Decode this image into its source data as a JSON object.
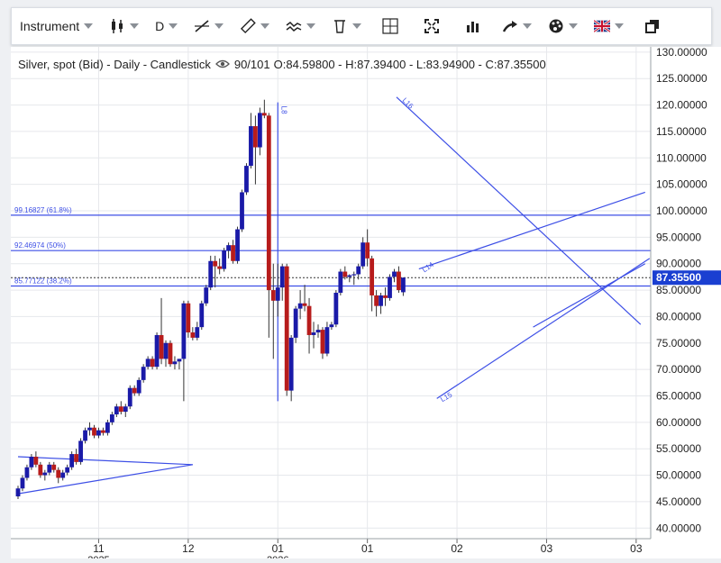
{
  "toolbar": {
    "instrument_label": "Instrument",
    "period_label": "D"
  },
  "info": {
    "title": "Silver, spot (Bid) - Daily - Candlestick",
    "count": "90/101",
    "ohlc": "O:84.59800 - H:87.39400 - L:83.94900 - C:87.35500"
  },
  "colors": {
    "up": "#1a1aa8",
    "down": "#b71c1c",
    "drawing": "#3d4fe6",
    "grid": "#e6e8ec",
    "price_tag": "#1a3fd1"
  },
  "chart_data": {
    "type": "candlestick",
    "ylim": [
      38,
      131
    ],
    "y_ticks": [
      "130.00000",
      "125.00000",
      "120.00000",
      "115.00000",
      "110.00000",
      "105.00000",
      "100.00000",
      "95.00000",
      "90.00000",
      "85.00000",
      "80.00000",
      "75.00000",
      "70.00000",
      "65.00000",
      "60.00000",
      "55.00000",
      "50.00000",
      "45.00000",
      "40.00000"
    ],
    "x_ticks": [
      {
        "label": "11",
        "sub": "2025",
        "i": 18
      },
      {
        "label": "12",
        "sub": "",
        "i": 38
      },
      {
        "label": "01",
        "sub": "2026",
        "i": 58
      },
      {
        "label": "01",
        "sub": "",
        "i": 78
      },
      {
        "label": "02",
        "sub": "",
        "i": 98
      },
      {
        "label": "03",
        "sub": "",
        "i": 118
      },
      {
        "label": "03",
        "sub": "",
        "i": 138
      }
    ],
    "last_price": "87.35500",
    "candles": [
      [
        46,
        48,
        45.5,
        47.5
      ],
      [
        47.5,
        50,
        47,
        49.5
      ],
      [
        49.5,
        52,
        49,
        51.5
      ],
      [
        51.5,
        54,
        51,
        53.5
      ],
      [
        53.5,
        54.5,
        51.5,
        52
      ],
      [
        52,
        52.5,
        49.5,
        50
      ],
      [
        50,
        51,
        49,
        50.5
      ],
      [
        50.5,
        52.5,
        50,
        52
      ],
      [
        52,
        52.5,
        50.5,
        51
      ],
      [
        51,
        51.5,
        48.5,
        49.5
      ],
      [
        49.5,
        51,
        49,
        50.5
      ],
      [
        50.5,
        52,
        50,
        51.5
      ],
      [
        51.5,
        54.5,
        51,
        54
      ],
      [
        54,
        55,
        52,
        52.5
      ],
      [
        52.5,
        57,
        52,
        56.5
      ],
      [
        56.5,
        59,
        56,
        58.5
      ],
      [
        58.5,
        60,
        57.5,
        59
      ],
      [
        59,
        59.5,
        57,
        57.5
      ],
      [
        57.5,
        59,
        57,
        58.5
      ],
      [
        58.5,
        59,
        57.5,
        58
      ],
      [
        58,
        60.5,
        57.5,
        60
      ],
      [
        60,
        62,
        59.5,
        61.5
      ],
      [
        61.5,
        63.5,
        61,
        63
      ],
      [
        63,
        64,
        61.5,
        62
      ],
      [
        62,
        63.5,
        61,
        63
      ],
      [
        63,
        67,
        62.5,
        66.5
      ],
      [
        66.5,
        67,
        65,
        65.5
      ],
      [
        65.5,
        68.5,
        65,
        68
      ],
      [
        68,
        71,
        67.5,
        70.5
      ],
      [
        70.5,
        72.5,
        70,
        72
      ],
      [
        72,
        72.5,
        70,
        70.5
      ],
      [
        70.5,
        77,
        70,
        76.5
      ],
      [
        76.5,
        83.5,
        71,
        72
      ],
      [
        72,
        75.5,
        70.5,
        75
      ],
      [
        75,
        75.5,
        70.5,
        71
      ],
      [
        71,
        72.5,
        70,
        71.5
      ],
      [
        71.5,
        72,
        70,
        72
      ],
      [
        72,
        83,
        64,
        82.5
      ],
      [
        82.5,
        83,
        76,
        77
      ],
      [
        77,
        78,
        75.5,
        76
      ],
      [
        76,
        79,
        75.5,
        78
      ],
      [
        78,
        83,
        77.5,
        82.5
      ],
      [
        82.5,
        86,
        82,
        85.5
      ],
      [
        85.5,
        91.5,
        85,
        90.5
      ],
      [
        90.5,
        91.5,
        85.5,
        89.5
      ],
      [
        89.5,
        91,
        88,
        89
      ],
      [
        89,
        93,
        88.5,
        92.5
      ],
      [
        92.5,
        94,
        91,
        93.5
      ],
      [
        93.5,
        94.5,
        90,
        90.5
      ],
      [
        90.5,
        97,
        90,
        96.5
      ],
      [
        96.5,
        104,
        96,
        103.5
      ],
      [
        103.5,
        109,
        103,
        108.5
      ],
      [
        108.5,
        118.5,
        108,
        116
      ],
      [
        116,
        118,
        105,
        112
      ],
      [
        112,
        119.5,
        110.5,
        118.5
      ],
      [
        118.5,
        121,
        117.5,
        118
      ],
      [
        118,
        118.5,
        76,
        85
      ],
      [
        85,
        90,
        72,
        83
      ],
      [
        83,
        90,
        80,
        85.5
      ],
      [
        85.5,
        90,
        83,
        89.5
      ],
      [
        89.5,
        90,
        65,
        66
      ],
      [
        66,
        76.5,
        64,
        76
      ],
      [
        76,
        82,
        75,
        81.5
      ],
      [
        81.5,
        85,
        79.5,
        82.5
      ],
      [
        82.5,
        86,
        81,
        82
      ],
      [
        82,
        83.5,
        73,
        76.5
      ],
      [
        76.5,
        79,
        74,
        77
      ],
      [
        77,
        78.5,
        76,
        77.5
      ],
      [
        77.5,
        78,
        72,
        73
      ],
      [
        73,
        79,
        72.5,
        78
      ],
      [
        78,
        79,
        77.5,
        78.5
      ],
      [
        78.5,
        85,
        78,
        84.5
      ],
      [
        84.5,
        89,
        84,
        88.5
      ],
      [
        88.5,
        89.5,
        87,
        87.5
      ],
      [
        87.5,
        88,
        86.5,
        87.8
      ],
      [
        87.8,
        88.5,
        86,
        88
      ],
      [
        88,
        90,
        87,
        89.5
      ],
      [
        89.5,
        95,
        89,
        94
      ],
      [
        94,
        96.5,
        89.5,
        91
      ],
      [
        91,
        91.5,
        81,
        84
      ],
      [
        84,
        85,
        80,
        82
      ],
      [
        82,
        84.5,
        80.5,
        84
      ],
      [
        84,
        85.5,
        82,
        83.5
      ],
      [
        83.5,
        88,
        83,
        87.5
      ],
      [
        87.5,
        89,
        86.5,
        88.5
      ],
      [
        88.5,
        89.5,
        84.5,
        85
      ],
      [
        84.6,
        87.4,
        83.9,
        87.355
      ]
    ],
    "h_levels": [
      {
        "label": "99.16827 (61.8%)",
        "value": 99.16827
      },
      {
        "label": "92.46974 (50%)",
        "value": 92.46974
      },
      {
        "label": "85.77122 (38.2%)",
        "value": 85.77122
      }
    ],
    "dotted_level": 87.355,
    "trendlines": [
      {
        "name": "L16",
        "x1": 84.5,
        "y1": 121.5,
        "x2": 139,
        "y2": 78.5
      },
      {
        "name": "L14",
        "x1": 89.5,
        "y1": 89,
        "x2": 140,
        "y2": 103.5
      },
      {
        "name": "L15",
        "x1": 93.5,
        "y1": 64.5,
        "x2": 141,
        "y2": 91
      },
      {
        "name": "",
        "x1": 115,
        "y1": 78,
        "x2": 140,
        "y2": 90
      },
      {
        "name": "",
        "x1": 0,
        "y1": 53.5,
        "x2": 39,
        "y2": 52
      },
      {
        "name": "",
        "x1": 0,
        "y1": 46.5,
        "x2": 39,
        "y2": 52
      }
    ],
    "vertical_line": {
      "name": "L8",
      "x": 58,
      "y_top": 120.5,
      "y_bottom": 64
    }
  }
}
